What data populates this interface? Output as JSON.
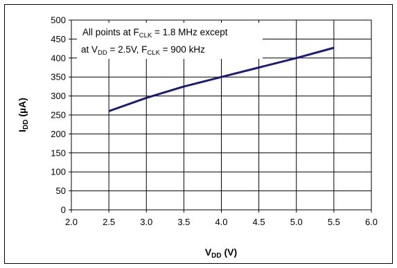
{
  "chart_data": {
    "type": "line",
    "x": [
      2.5,
      3.0,
      3.5,
      4.0,
      4.5,
      5.0,
      5.5
    ],
    "series": [
      {
        "values": [
          260,
          295,
          325,
          350,
          375,
          400,
          427
        ],
        "color": "#1a1a7a"
      }
    ],
    "xlim": [
      2.0,
      6.0
    ],
    "ylim": [
      0,
      500
    ],
    "x_ticks": [
      "2.0",
      "2.5",
      "3.0",
      "3.5",
      "4.0",
      "4.5",
      "5.0",
      "5.5",
      "6.0"
    ],
    "y_ticks": [
      "0",
      "50",
      "100",
      "150",
      "200",
      "250",
      "300",
      "350",
      "400",
      "450",
      "500"
    ],
    "xlabel": {
      "main": "V",
      "sub": "DD",
      "unit": " (V)"
    },
    "ylabel": {
      "main": "I",
      "sub": "DD",
      "unit": " (µA)"
    },
    "grid": true,
    "annotation": {
      "line1": {
        "prefix": "All points at F",
        "sub": "CLK",
        "suffix": " = 1.8 MHz except"
      },
      "line2": {
        "prefix": "at V",
        "sub": "DD",
        "mid": " = 2.5V, F",
        "sub2": "CLK",
        "suffix": " = 900 kHz"
      }
    }
  }
}
